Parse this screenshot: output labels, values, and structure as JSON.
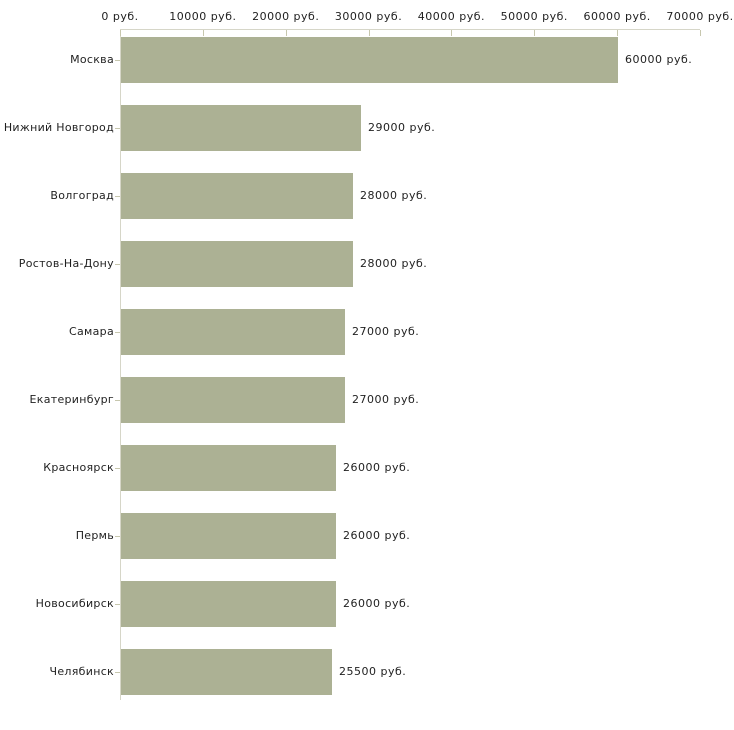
{
  "chart_data": {
    "type": "bar",
    "orientation": "horizontal",
    "categories": [
      "Москва",
      "Нижний Новгород",
      "Волгоград",
      "Ростов-На-Дону",
      "Самара",
      "Екатеринбург",
      "Красноярск",
      "Пермь",
      "Новосибирск",
      "Челябинск"
    ],
    "values": [
      60000,
      29000,
      28000,
      28000,
      27000,
      27000,
      26000,
      26000,
      26000,
      25500
    ],
    "value_labels": [
      "60000 руб.",
      "29000 руб.",
      "28000 руб.",
      "28000 руб.",
      "27000 руб.",
      "27000 руб.",
      "26000 руб.",
      "26000 руб.",
      "26000 руб.",
      "25500 руб."
    ],
    "x_tick_values": [
      0,
      10000,
      20000,
      30000,
      40000,
      50000,
      60000,
      70000
    ],
    "x_tick_labels": [
      "0 руб.",
      "10000 руб.",
      "20000 руб.",
      "30000 руб.",
      "40000 руб.",
      "50000 руб.",
      "60000 руб.",
      "70000 руб."
    ],
    "xlim": [
      0,
      70000
    ],
    "unit": "руб.",
    "title": "",
    "xlabel": "",
    "ylabel": "",
    "grid": false,
    "legend": false,
    "bar_color": "#acb194",
    "axis_color": "#d6d6c8",
    "tick_color": "#c7c7ae",
    "text_color": "#1f1f1f"
  }
}
